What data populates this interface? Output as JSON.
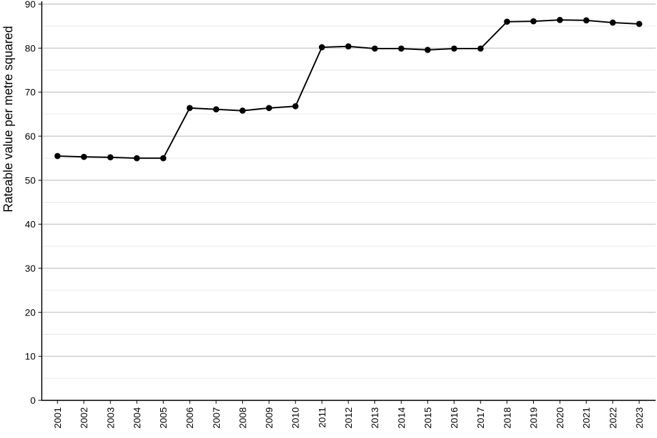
{
  "chart_data": {
    "type": "line",
    "y_label": "Rateable value per metre squared",
    "categories": [
      "2001",
      "2002",
      "2003",
      "2004",
      "2005",
      "2006",
      "2007",
      "2008",
      "2009",
      "2010",
      "2011",
      "2012",
      "2013",
      "2014",
      "2015",
      "2016",
      "2017",
      "2018",
      "2019",
      "2020",
      "2021",
      "2022",
      "2023"
    ],
    "series": [
      {
        "color": "#000000",
        "values": [
          55.5,
          55.3,
          55.2,
          55.0,
          55.0,
          66.4,
          66.1,
          65.8,
          66.4,
          66.8,
          80.2,
          80.4,
          79.9,
          79.9,
          79.6,
          79.9,
          79.9,
          86.0,
          86.1,
          86.4,
          86.3,
          85.8,
          85.5
        ]
      }
    ],
    "ylim": [
      0,
      90
    ],
    "yticks": [
      0,
      10,
      20,
      30,
      40,
      50,
      60,
      70,
      80,
      90
    ],
    "yminor": [
      5,
      15,
      25,
      35,
      45,
      55,
      65,
      75,
      85
    ],
    "grid": true
  }
}
